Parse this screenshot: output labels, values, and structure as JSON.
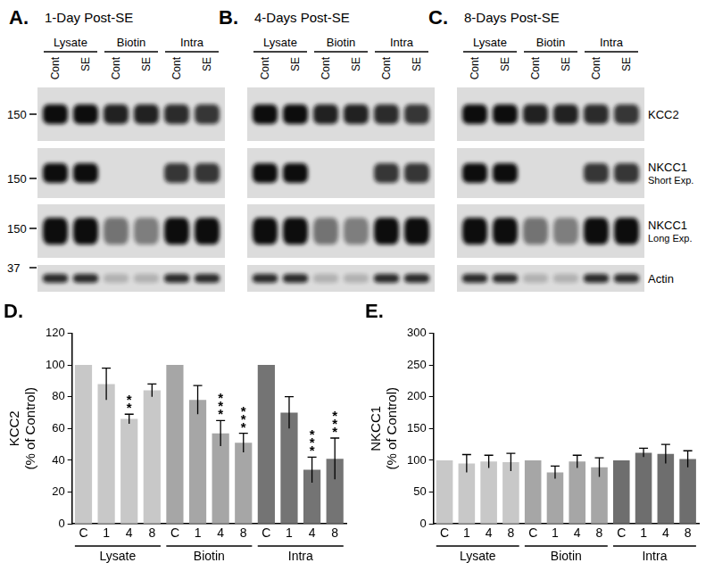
{
  "blots": {
    "panels": [
      {
        "letter": "A.",
        "title": "1-Day Post-SE"
      },
      {
        "letter": "B.",
        "title": "4-Days Post-SE"
      },
      {
        "letter": "C.",
        "title": "8-Days Post-SE"
      }
    ],
    "groups": [
      "Lysate",
      "Biotin",
      "Intra"
    ],
    "lanes": [
      "Cont",
      "SE"
    ],
    "rows": [
      {
        "label": "KCC2",
        "marker": 150
      },
      {
        "label": "NKCC1",
        "sublabel": "Short Exp.",
        "marker": 150
      },
      {
        "label": "NKCC1",
        "sublabel": "Long Exp.",
        "marker": 150
      },
      {
        "label": "Actin",
        "marker": 37
      }
    ]
  },
  "chart_data": [
    {
      "type": "bar",
      "title": "D.",
      "ylabel": [
        "KCC2",
        "(% of Control)"
      ],
      "categories": [
        "C",
        "1",
        "4",
        "8",
        "C",
        "1",
        "4",
        "8",
        "C",
        "1",
        "4",
        "8"
      ],
      "groups": [
        "Lysate",
        "Biotin",
        "Intra"
      ],
      "values": [
        100,
        88,
        66,
        84,
        100,
        78,
        57,
        51,
        100,
        70,
        34,
        41
      ],
      "errors": [
        0,
        10,
        3,
        4,
        0,
        9,
        8,
        6,
        0,
        10,
        8,
        13
      ],
      "significance": [
        null,
        null,
        "**",
        null,
        null,
        null,
        "***",
        "***",
        null,
        null,
        "***",
        "***"
      ],
      "colors": [
        "#c8c8c8",
        "#c8c8c8",
        "#c8c8c8",
        "#c8c8c8",
        "#a6a6a6",
        "#a6a6a6",
        "#a6a6a6",
        "#a6a6a6",
        "#747474",
        "#747474",
        "#747474",
        "#747474"
      ],
      "ylim": [
        0,
        120
      ],
      "yticks": [
        0,
        20,
        40,
        60,
        80,
        100,
        120
      ],
      "grid": false
    },
    {
      "type": "bar",
      "title": "E.",
      "ylabel": [
        "NKCC1",
        "(% of Control)"
      ],
      "categories": [
        "C",
        "1",
        "4",
        "8",
        "C",
        "1",
        "4",
        "8",
        "C",
        "1",
        "4",
        "8"
      ],
      "groups": [
        "Lysate",
        "Biotin",
        "Intra"
      ],
      "values": [
        100,
        95,
        98,
        97,
        100,
        81,
        98,
        89,
        100,
        112,
        110,
        102
      ],
      "errors": [
        0,
        14,
        10,
        14,
        0,
        10,
        10,
        15,
        0,
        7,
        15,
        13
      ],
      "colors": [
        "#c8c8c8",
        "#c8c8c8",
        "#c8c8c8",
        "#c8c8c8",
        "#a6a6a6",
        "#a6a6a6",
        "#a6a6a6",
        "#a6a6a6",
        "#6e6e6e",
        "#6e6e6e",
        "#6e6e6e",
        "#6e6e6e"
      ],
      "ylim": [
        0,
        300
      ],
      "yticks": [
        0,
        50,
        100,
        150,
        200,
        250,
        300
      ],
      "grid": false
    }
  ]
}
